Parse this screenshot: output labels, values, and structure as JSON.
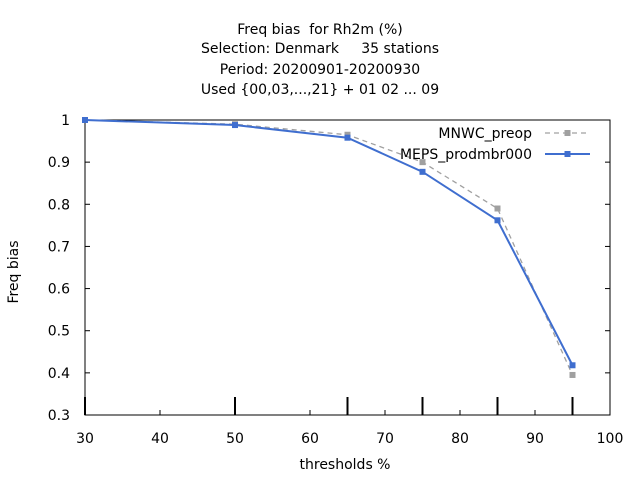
{
  "chart_data": {
    "type": "line",
    "title": [
      "Freq bias  for Rh2m (%)",
      "Selection: Denmark     35 stations",
      "Period: 20200901-20200930",
      "Used {00,03,...,21} + 01 02 ... 09"
    ],
    "xlabel": "thresholds %",
    "ylabel": "Freq bias",
    "xlim": [
      30,
      100
    ],
    "ylim": [
      0.3,
      1.0
    ],
    "xticks": [
      "30",
      "40",
      "50",
      "60",
      "70",
      "80",
      "90",
      "100"
    ],
    "yticks": [
      "0.3",
      "0.4",
      "0.5",
      "0.6",
      "0.7",
      "0.8",
      "0.9",
      "1"
    ],
    "legend_position": "top-right",
    "grid": false,
    "series": [
      {
        "name": "MNWC_preop",
        "color": "#a0a0a0",
        "dashed": true,
        "x": [
          30,
          50,
          65,
          75,
          85,
          95
        ],
        "y": [
          1.0,
          0.99,
          0.965,
          0.9,
          0.79,
          0.395
        ]
      },
      {
        "name": "MEPS_prodmbr000",
        "color": "#3f6ecf",
        "dashed": false,
        "x": [
          30,
          50,
          65,
          75,
          85,
          95
        ],
        "y": [
          1.0,
          0.988,
          0.958,
          0.877,
          0.762,
          0.418
        ]
      }
    ]
  }
}
